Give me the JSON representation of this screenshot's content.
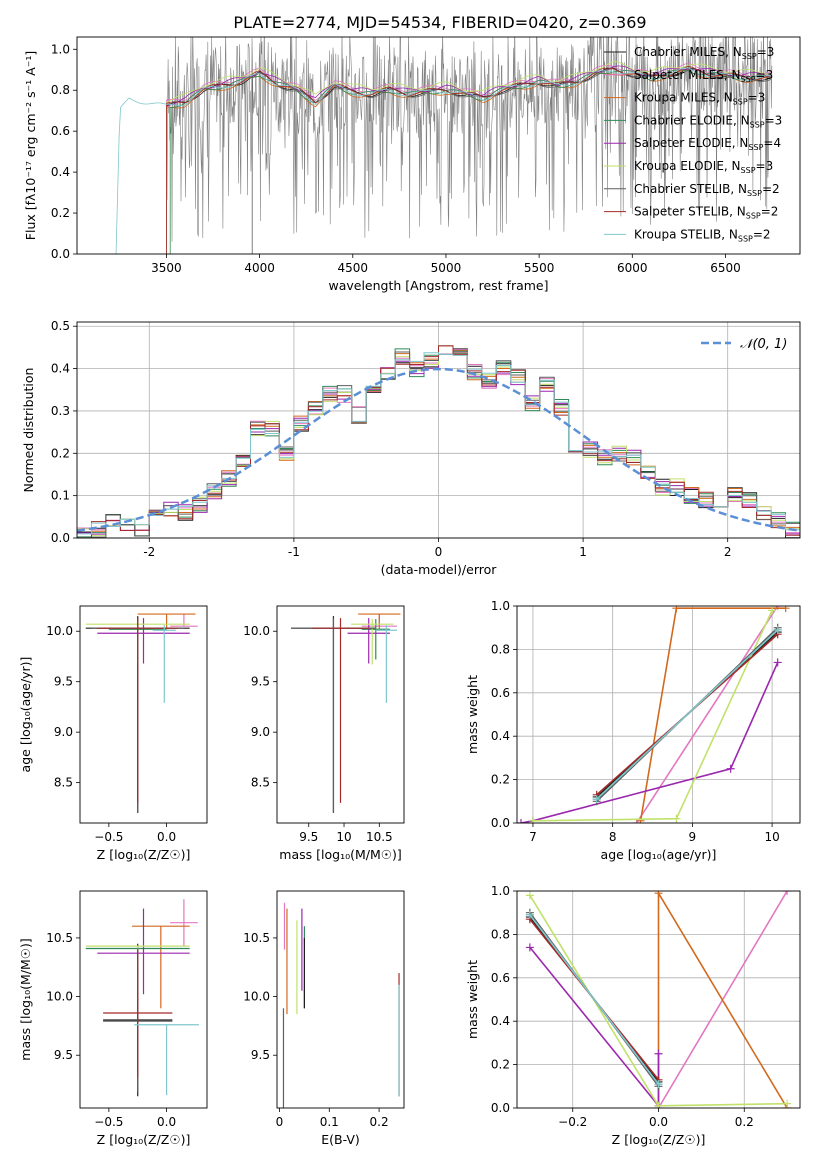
{
  "figure_title": "PLATE=2774, MJD=54534, FIBERID=0420, z=0.369",
  "colors": [
    "#1f1f1f",
    "#e377c2",
    "#d2691e",
    "#2e8b57",
    "#9b27af",
    "#c0e26b",
    "#5f5f5f",
    "#a52a2a",
    "#7fc7cc"
  ],
  "chart_data": [
    {
      "id": "spectrum",
      "type": "line",
      "xlabel": "wavelength [Angstrom, rest frame]",
      "ylabel": "Flux [f$_\\lambda$10$^{-17}$ erg cm$^{-2}$ s$^{-1}$ A$^{-1}$]",
      "ylabel_display": "Flux [fλ10⁻¹⁷ erg cm⁻² s⁻¹ A⁻¹]",
      "xlim": [
        3020,
        6900
      ],
      "ylim": [
        0,
        1.06
      ],
      "xticks": [
        3500,
        4000,
        4500,
        5000,
        5500,
        6000,
        6500
      ],
      "yticks": [
        0.0,
        0.2,
        0.4,
        0.6,
        0.8,
        1.0
      ],
      "legend_position": "top-right",
      "legend": [
        {
          "name": "Chabrier MILES, N$_{SSP}$=3",
          "display": "Chabrier MILES, N_SSP=3",
          "color": "#1f1f1f"
        },
        {
          "name": "Salpeter MILES, N$_{SSP}$=3",
          "display": "Salpeter MILES, N_SSP=3",
          "color": "#e377c2"
        },
        {
          "name": "Kroupa MILES, N$_{SSP}$=3",
          "display": "Kroupa MILES, N_SSP=3",
          "color": "#d2691e"
        },
        {
          "name": "Chabrier ELODIE, N$_{SSP}$=3",
          "display": "Chabrier ELODIE, N_SSP=3",
          "color": "#2e8b57"
        },
        {
          "name": "Salpeter ELODIE, N$_{SSP}$=4",
          "display": "Salpeter ELODIE, N_SSP=4",
          "color": "#9b27af"
        },
        {
          "name": "Kroupa ELODIE, N$_{SSP}$=3",
          "display": "Kroupa ELODIE, N_SSP=3",
          "color": "#c0e26b"
        },
        {
          "name": "Chabrier STELIB, N$_{SSP}$=2",
          "display": "Chabrier STELIB, N_SSP=2",
          "color": "#5f5f5f"
        },
        {
          "name": "Salpeter STELIB, N$_{SSP}$=2",
          "display": "Salpeter STELIB, N_SSP=2",
          "color": "#a52a2a"
        },
        {
          "name": "Kroupa STELIB, N$_{SSP}$=2",
          "display": "Kroupa STELIB, N_SSP=2",
          "color": "#7fc7cc"
        }
      ],
      "data_series": {
        "color": "#808080",
        "x_start": 3500,
        "x_end": 6750,
        "description_points": [
          [
            3500,
            0.78
          ],
          [
            3800,
            0.8
          ],
          [
            4000,
            0.86
          ],
          [
            4500,
            0.78
          ],
          [
            5000,
            0.8
          ],
          [
            5500,
            0.83
          ],
          [
            6000,
            0.88
          ],
          [
            6500,
            0.85
          ]
        ]
      },
      "model_envelope": [
        [
          3230,
          0.0
        ],
        [
          3250,
          0.7
        ],
        [
          3300,
          0.76
        ],
        [
          3400,
          0.74
        ],
        [
          3500,
          0.72
        ],
        [
          3600,
          0.74
        ],
        [
          3700,
          0.8
        ],
        [
          3800,
          0.82
        ],
        [
          3900,
          0.84
        ],
        [
          4000,
          0.88
        ],
        [
          4100,
          0.83
        ],
        [
          4200,
          0.8
        ],
        [
          4300,
          0.74
        ],
        [
          4400,
          0.82
        ],
        [
          4500,
          0.79
        ],
        [
          4600,
          0.78
        ],
        [
          4700,
          0.8
        ],
        [
          4800,
          0.78
        ],
        [
          4900,
          0.79
        ],
        [
          5000,
          0.8
        ],
        [
          5100,
          0.78
        ],
        [
          5200,
          0.76
        ],
        [
          5300,
          0.8
        ],
        [
          5400,
          0.82
        ],
        [
          5500,
          0.84
        ],
        [
          5600,
          0.82
        ],
        [
          5700,
          0.84
        ],
        [
          5800,
          0.88
        ],
        [
          5900,
          0.9
        ],
        [
          6000,
          0.88
        ],
        [
          6100,
          0.86
        ],
        [
          6200,
          0.88
        ],
        [
          6300,
          0.9
        ],
        [
          6400,
          0.88
        ],
        [
          6500,
          0.87
        ],
        [
          6600,
          0.86
        ],
        [
          6700,
          0.86
        ]
      ]
    },
    {
      "id": "residual-histogram",
      "type": "line",
      "xlabel": "(data-model)/error",
      "ylabel": "Normed distribution",
      "xlim": [
        -2.5,
        2.5
      ],
      "ylim": [
        0,
        0.51
      ],
      "xticks": [
        -2,
        -1,
        0,
        1,
        2
      ],
      "yticks": [
        0.0,
        0.1,
        0.2,
        0.3,
        0.4,
        0.5
      ],
      "legend_position": "top-right",
      "gaussian_label": "$\\mathcal{N}(0,1)$",
      "gaussian_display": "𝒩(0, 1)",
      "gaussian_color": "#5b8fd6",
      "bins": [
        -2.5,
        -2.4,
        -2.3,
        -2.2,
        -2.1,
        -2.0,
        -1.9,
        -1.8,
        -1.7,
        -1.6,
        -1.5,
        -1.4,
        -1.3,
        -1.2,
        -1.1,
        -1.0,
        -0.9,
        -0.8,
        -0.7,
        -0.6,
        -0.5,
        -0.4,
        -0.3,
        -0.2,
        -0.1,
        0.0,
        0.1,
        0.2,
        0.3,
        0.4,
        0.5,
        0.6,
        0.7,
        0.8,
        0.9,
        1.0,
        1.1,
        1.2,
        1.3,
        1.4,
        1.5,
        1.6,
        1.7,
        1.8,
        1.9,
        2.0,
        2.1,
        2.2,
        2.3,
        2.4,
        2.5
      ],
      "histogram_values": [
        0.005,
        0.02,
        0.04,
        0.03,
        0.02,
        0.05,
        0.07,
        0.06,
        0.08,
        0.11,
        0.14,
        0.18,
        0.26,
        0.26,
        0.2,
        0.27,
        0.31,
        0.34,
        0.34,
        0.29,
        0.36,
        0.39,
        0.43,
        0.4,
        0.42,
        0.45,
        0.43,
        0.39,
        0.37,
        0.4,
        0.38,
        0.32,
        0.36,
        0.31,
        0.2,
        0.21,
        0.19,
        0.2,
        0.19,
        0.15,
        0.12,
        0.12,
        0.1,
        0.09,
        0.08,
        0.1,
        0.09,
        0.06,
        0.04,
        0.02
      ]
    },
    {
      "id": "age-vs-z",
      "type": "scatter",
      "xlabel": "Z [log$_{10}$(Z/Z$_\\odot$)]",
      "xlabel_display": "Z [log₁₀(Z/Z☉)]",
      "ylabel": "age  [log$_{10}$(age/yr)]",
      "ylabel_display": "age  [log₁₀(age/yr)]",
      "xlim": [
        -0.75,
        0.35
      ],
      "ylim": [
        8.1,
        10.25
      ],
      "xticks": [
        -0.5,
        0.0
      ],
      "xtick_labels": [
        "−0.5",
        "0.0"
      ],
      "yticks": [
        8.5,
        9.0,
        9.5,
        10.0
      ],
      "points": [
        {
          "x": -0.25,
          "y": 10.03,
          "xerr": 0.45,
          "yerr_lo": 1.83,
          "yerr_hi": 0.12,
          "color": "#1f1f1f"
        },
        {
          "x": 0.15,
          "y": 10.05,
          "xerr": 0.12,
          "yerr_lo": 0.0,
          "yerr_hi": 0.12,
          "color": "#e377c2"
        },
        {
          "x": 0.0,
          "y": 10.17,
          "xerr": 0.25,
          "yerr_lo": 0.15,
          "yerr_hi": 0.0,
          "color": "#d2691e"
        },
        {
          "x": -0.25,
          "y": 10.02,
          "xerr": 0.25,
          "yerr_lo": 0.3,
          "yerr_hi": 0.1,
          "color": "#2e8b57"
        },
        {
          "x": -0.2,
          "y": 9.98,
          "xerr": 0.4,
          "yerr_lo": 0.3,
          "yerr_hi": 0.15,
          "color": "#9b27af"
        },
        {
          "x": -0.25,
          "y": 10.07,
          "xerr": 0.45,
          "yerr_lo": 0.4,
          "yerr_hi": 0.05,
          "color": "#c0e26b"
        },
        {
          "x": -0.25,
          "y": 10.03,
          "xerr": 0.4,
          "yerr_lo": 1.83,
          "yerr_hi": 0.1,
          "color": "#5f5f5f"
        },
        {
          "x": -0.25,
          "y": 10.03,
          "xerr": 0.35,
          "yerr_lo": 1.73,
          "yerr_hi": 0.1,
          "color": "#a52a2a"
        },
        {
          "x": -0.02,
          "y": 10.01,
          "xerr": 0.1,
          "yerr_lo": 0.72,
          "yerr_hi": 0.05,
          "color": "#7fc7cc"
        }
      ]
    },
    {
      "id": "age-vs-mass",
      "type": "scatter",
      "xlabel": "mass [log$_{10}$(M/M$_\\odot$)]",
      "xlabel_display": "mass [log₁₀(M/M☉)]",
      "xlim": [
        9.05,
        10.85
      ],
      "ylim": [
        8.1,
        10.25
      ],
      "xticks": [
        9.5,
        10.0,
        10.5
      ],
      "yticks": [
        8.5,
        9.0,
        9.5,
        10.0
      ],
      "points": [
        {
          "x": 9.85,
          "y": 10.03,
          "xerr": 0.6,
          "yerr_lo": 1.83,
          "yerr_hi": 0.12,
          "color": "#1f1f1f"
        },
        {
          "x": 10.5,
          "y": 10.05,
          "xerr": 0.25,
          "yerr_lo": 0.0,
          "yerr_hi": 0.12,
          "color": "#e377c2"
        },
        {
          "x": 10.5,
          "y": 10.17,
          "xerr": 0.3,
          "yerr_lo": 0.15,
          "yerr_hi": 0.0,
          "color": "#d2691e"
        },
        {
          "x": 10.45,
          "y": 10.02,
          "xerr": 0.2,
          "yerr_lo": 0.3,
          "yerr_hi": 0.1,
          "color": "#2e8b57"
        },
        {
          "x": 10.35,
          "y": 9.98,
          "xerr": 0.3,
          "yerr_lo": 0.3,
          "yerr_hi": 0.15,
          "color": "#9b27af"
        },
        {
          "x": 10.4,
          "y": 10.07,
          "xerr": 0.3,
          "yerr_lo": 0.4,
          "yerr_hi": 0.05,
          "color": "#c0e26b"
        },
        {
          "x": 9.85,
          "y": 10.03,
          "xerr": 0.6,
          "yerr_lo": 1.83,
          "yerr_hi": 0.1,
          "color": "#5f5f5f"
        },
        {
          "x": 9.95,
          "y": 10.03,
          "xerr": 0.4,
          "yerr_lo": 1.73,
          "yerr_hi": 0.1,
          "color": "#a52a2a"
        },
        {
          "x": 10.6,
          "y": 10.01,
          "xerr": 0.15,
          "yerr_lo": 0.72,
          "yerr_hi": 0.05,
          "color": "#7fc7cc"
        }
      ]
    },
    {
      "id": "weight-vs-age",
      "type": "line",
      "xlabel": "age  [log$_{10}$(age/yr)]",
      "xlabel_display": "age  [log₁₀(age/yr)]",
      "ylabel": "mass weight",
      "xlim": [
        6.8,
        10.35
      ],
      "ylim": [
        0,
        1.0
      ],
      "xticks": [
        7,
        8,
        9,
        10
      ],
      "yticks": [
        0.0,
        0.2,
        0.4,
        0.6,
        0.8,
        1.0
      ],
      "series": [
        {
          "color": "#1f1f1f",
          "x": [
            7.8,
            10.07
          ],
          "y": [
            0.12,
            0.88
          ]
        },
        {
          "color": "#e377c2",
          "x": [
            8.3,
            10.07
          ],
          "y": [
            0.0,
            1.0
          ]
        },
        {
          "color": "#d2691e",
          "x": [
            8.35,
            8.8,
            10.17
          ],
          "y": [
            0.01,
            0.99,
            0.99
          ]
        },
        {
          "color": "#2e8b57",
          "x": [
            7.8,
            10.07
          ],
          "y": [
            0.11,
            0.89
          ]
        },
        {
          "color": "#9b27af",
          "x": [
            6.85,
            7.0,
            9.48,
            10.07
          ],
          "y": [
            0.0,
            0.01,
            0.25,
            0.74
          ]
        },
        {
          "color": "#c0e26b",
          "x": [
            7.0,
            8.8,
            10.0
          ],
          "y": [
            0.01,
            0.02,
            0.98
          ]
        },
        {
          "color": "#5f5f5f",
          "x": [
            7.8,
            10.07
          ],
          "y": [
            0.1,
            0.9
          ]
        },
        {
          "color": "#a52a2a",
          "x": [
            7.8,
            10.07
          ],
          "y": [
            0.13,
            0.87
          ]
        },
        {
          "color": "#7fc7cc",
          "x": [
            7.8,
            10.07
          ],
          "y": [
            0.11,
            0.89
          ]
        }
      ]
    },
    {
      "id": "mass-vs-z",
      "type": "scatter",
      "xlabel": "Z [log$_{10}$(Z/Z$_\\odot$)]",
      "xlabel_display": "Z [log₁₀(Z/Z☉)]",
      "ylabel": "mass [log$_{10}$(M/M$_\\odot$)]",
      "ylabel_display": "mass [log₁₀(M/M☉)]",
      "xlim": [
        -0.75,
        0.35
      ],
      "ylim": [
        9.05,
        10.9
      ],
      "xticks": [
        -0.5,
        0.0
      ],
      "xtick_labels": [
        "−0.5",
        "0.0"
      ],
      "yticks": [
        9.5,
        10.0,
        10.5
      ],
      "points": [
        {
          "x": -0.25,
          "y": 9.8,
          "xerr": 0.3,
          "yerr_lo": 0.65,
          "yerr_hi": 0.65,
          "color": "#1f1f1f"
        },
        {
          "x": 0.15,
          "y": 10.63,
          "xerr": 0.12,
          "yerr_lo": 0.2,
          "yerr_hi": 0.2,
          "color": "#e377c2"
        },
        {
          "x": -0.05,
          "y": 10.6,
          "xerr": 0.25,
          "yerr_lo": 0.7,
          "yerr_hi": 0.0,
          "color": "#d2691e"
        },
        {
          "x": -0.25,
          "y": 10.41,
          "xerr": 0.45,
          "yerr_lo": 0.3,
          "yerr_hi": 0.0,
          "color": "#2e8b57"
        },
        {
          "x": -0.2,
          "y": 10.37,
          "xerr": 0.4,
          "yerr_lo": 0.35,
          "yerr_hi": 0.38,
          "color": "#9b27af"
        },
        {
          "x": -0.25,
          "y": 10.43,
          "xerr": 0.45,
          "yerr_lo": 0.2,
          "yerr_hi": 0.0,
          "color": "#c0e26b"
        },
        {
          "x": -0.25,
          "y": 9.79,
          "xerr": 0.3,
          "yerr_lo": 0.6,
          "yerr_hi": 0.6,
          "color": "#5f5f5f"
        },
        {
          "x": -0.25,
          "y": 9.86,
          "xerr": 0.3,
          "yerr_lo": 0.55,
          "yerr_hi": 0.55,
          "color": "#a52a2a"
        },
        {
          "x": 0.0,
          "y": 9.76,
          "xerr": 0.28,
          "yerr_lo": 0.6,
          "yerr_hi": 0.0,
          "color": "#7fc7cc"
        }
      ]
    },
    {
      "id": "mass-vs-ebv",
      "type": "scatter",
      "xlabel": "E(B-V)",
      "xlim": [
        -0.005,
        0.25
      ],
      "ylim": [
        9.05,
        10.9
      ],
      "xticks": [
        0.0,
        0.1,
        0.2
      ],
      "yticks": [
        9.5,
        10.0,
        10.5
      ],
      "points": [
        {
          "x": 0.01,
          "y": 10.6,
          "yerr_lo": 0.2,
          "yerr_hi": 0.2,
          "color": "#e377c2"
        },
        {
          "x": 0.015,
          "y": 10.3,
          "yerr_lo": 0.45,
          "yerr_hi": 0.45,
          "color": "#d2691e"
        },
        {
          "x": 0.05,
          "y": 10.25,
          "yerr_lo": 0.35,
          "yerr_hi": 0.35,
          "color": "#2e8b57"
        },
        {
          "x": 0.045,
          "y": 10.4,
          "yerr_lo": 0.35,
          "yerr_hi": 0.35,
          "color": "#9b27af"
        },
        {
          "x": 0.035,
          "y": 10.25,
          "yerr_lo": 0.4,
          "yerr_hi": 0.4,
          "color": "#c0e26b"
        },
        {
          "x": 0.008,
          "y": 9.9,
          "yerr_lo": 0.85,
          "yerr_hi": 0.0,
          "color": "#5f5f5f"
        },
        {
          "x": 0.24,
          "y": 9.85,
          "yerr_lo": 0.7,
          "yerr_hi": 0.35,
          "color": "#a52a2a"
        },
        {
          "x": 0.24,
          "y": 9.7,
          "yerr_lo": 0.55,
          "yerr_hi": 0.4,
          "color": "#7fc7cc"
        },
        {
          "x": 0.05,
          "y": 10.2,
          "yerr_lo": 0.3,
          "yerr_hi": 0.3,
          "color": "#1f1f1f"
        }
      ]
    },
    {
      "id": "weight-vs-z",
      "type": "line",
      "xlabel": "Z [log$_{10}$(Z/Z$_\\odot$)]",
      "xlabel_display": "Z [log₁₀(Z/Z☉)]",
      "ylabel": "mass weight",
      "xlim": [
        -0.33,
        0.33
      ],
      "ylim": [
        0,
        1.0
      ],
      "xticks": [
        -0.2,
        0.0,
        0.2
      ],
      "xtick_labels": [
        "−0.2",
        "0.0",
        "0.2"
      ],
      "yticks": [
        0.0,
        0.2,
        0.4,
        0.6,
        0.8,
        1.0
      ],
      "series": [
        {
          "color": "#1f1f1f",
          "x": [
            -0.3,
            0.0
          ],
          "y": [
            0.88,
            0.12
          ]
        },
        {
          "color": "#e377c2",
          "x": [
            0.0,
            0.3
          ],
          "y": [
            0.0,
            1.0
          ]
        },
        {
          "color": "#d2691e",
          "x": [
            0.0,
            0.0,
            0.3
          ],
          "y": [
            0.01,
            0.99,
            0.0
          ]
        },
        {
          "color": "#2e8b57",
          "x": [
            -0.3,
            0.0
          ],
          "y": [
            0.89,
            0.11
          ]
        },
        {
          "color": "#9b27af",
          "x": [
            -0.3,
            0.0,
            0.0
          ],
          "y": [
            0.74,
            0.01,
            0.25
          ]
        },
        {
          "color": "#c0e26b",
          "x": [
            -0.3,
            0.0,
            0.3
          ],
          "y": [
            0.98,
            0.01,
            0.02
          ]
        },
        {
          "color": "#5f5f5f",
          "x": [
            -0.3,
            0.0
          ],
          "y": [
            0.9,
            0.1
          ]
        },
        {
          "color": "#a52a2a",
          "x": [
            -0.3,
            0.0
          ],
          "y": [
            0.87,
            0.13
          ]
        },
        {
          "color": "#7fc7cc",
          "x": [
            -0.3,
            0.0
          ],
          "y": [
            0.89,
            0.11
          ]
        }
      ]
    }
  ]
}
